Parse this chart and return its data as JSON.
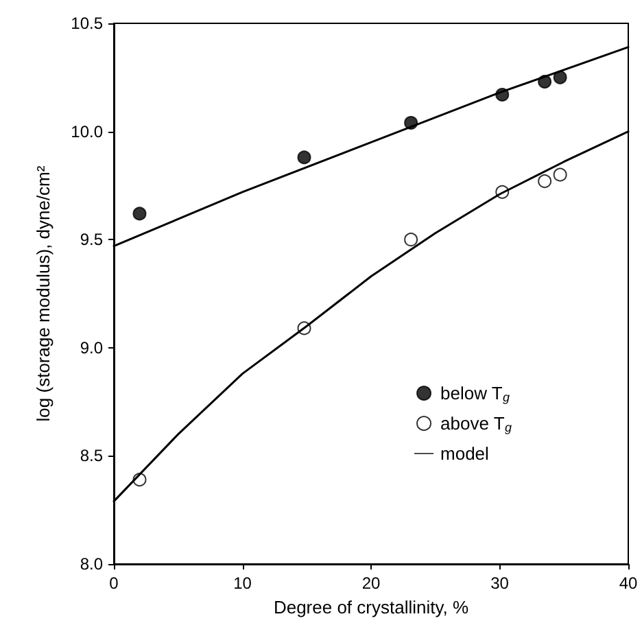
{
  "chart_data": {
    "type": "scatter",
    "xlabel": "Degree of crystallinity, %",
    "ylabel": "log (storage modulus), dyne/cm²",
    "xlim": [
      0,
      40
    ],
    "xticks": [
      0,
      10,
      20,
      30,
      40
    ],
    "ylim": [
      8.0,
      10.5
    ],
    "yticks": [
      {
        "value": 8.0,
        "label": "8.0"
      },
      {
        "value": 8.5,
        "label": "8.5"
      },
      {
        "value": 9.0,
        "label": "9.0"
      },
      {
        "value": 9.5,
        "label": "9.5"
      },
      {
        "value": 10.0,
        "label": "10.0"
      },
      {
        "value": 10.5,
        "label": "10.5"
      }
    ],
    "grid": false,
    "legend": "bottom right",
    "series": [
      {
        "name": "below T$_{g}$",
        "color": "#000000",
        "marker": "circle",
        "x": [
          2,
          14.8,
          23.1,
          30.2,
          33.5,
          34.7
        ],
        "values": [
          9.62,
          9.88,
          10.04,
          10.17,
          10.23,
          10.25
        ]
      },
      {
        "name": "above T$_{g}$",
        "color": "#ffffff",
        "marker": "circle",
        "x": [
          2,
          14.8,
          23.1,
          30.2,
          33.5,
          34.7
        ],
        "values": [
          8.39,
          9.09,
          9.5,
          9.72,
          9.77,
          9.8
        ]
      },
      {
        "name": "model",
        "type": "line",
        "color": "#000000",
        "marker": "none",
        "line_style": "solid",
        "x": [
          0,
          10,
          20,
          30,
          40
        ],
        "values": [
          9.47,
          9.72,
          9.95,
          10.18,
          10.39
        ]
      },
      {
        "type": "line",
        "color": "#000000",
        "marker": "none",
        "line_style": "solid",
        "x": [
          0,
          5,
          10,
          15,
          20,
          25,
          30,
          35,
          40
        ],
        "values": [
          8.29,
          8.6,
          8.88,
          9.1,
          9.33,
          9.53,
          9.71,
          9.86,
          10.0
        ]
      }
    ]
  }
}
